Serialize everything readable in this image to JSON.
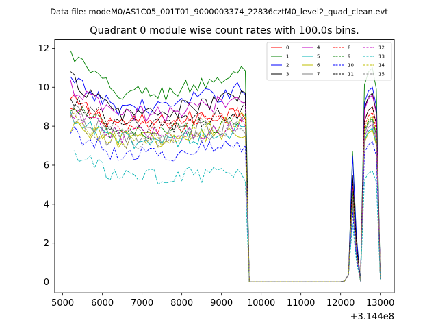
{
  "chart_data": {
    "type": "line",
    "subtitle": "Data file: modeM0/AS1C05_001T01_9000003374_22836cztM0_level2_quad_clean.evt",
    "title": "Quadrant 0 module wise count rates with 100.0s bins.",
    "xlabel": "",
    "ylabel": "",
    "x_offset_label": "+3.144e8",
    "xlim": [
      4800,
      13350
    ],
    "ylim": [
      -0.55,
      12.45
    ],
    "x_ticks": [
      5000,
      6000,
      7000,
      8000,
      9000,
      10000,
      11000,
      12000,
      13000
    ],
    "x_tick_labels": [
      "5000",
      "6000",
      "7000",
      "8000",
      "9000",
      "10000",
      "11000",
      "12000",
      "13000"
    ],
    "y_ticks": [
      0,
      2,
      4,
      6,
      8,
      10,
      12
    ],
    "y_tick_labels": [
      "0",
      "2",
      "4",
      "6",
      "8",
      "10",
      "12"
    ],
    "grid": false,
    "legend_position": "top-right",
    "series": [
      {
        "name": "0",
        "color": "#ff0000",
        "dash": false,
        "base": 8.2,
        "early": 9.3,
        "peak": 8.8,
        "spike": 5.2,
        "s2": 9.0
      },
      {
        "name": "1",
        "color": "#008000",
        "dash": false,
        "base": 9.7,
        "early": 11.7,
        "peak": 10.8,
        "spike": 6.7,
        "s2": 11.0
      },
      {
        "name": "2",
        "color": "#0000ff",
        "dash": false,
        "base": 9.0,
        "early": 10.3,
        "peak": 10.0,
        "spike": 6.5,
        "s2": 10.0
      },
      {
        "name": "3",
        "color": "#000000",
        "dash": false,
        "base": 8.7,
        "early": 10.5,
        "peak": 9.6,
        "spike": 5.5,
        "s2": 9.7
      },
      {
        "name": "4",
        "color": "#c000c0",
        "dash": false,
        "base": 8.6,
        "early": 10.0,
        "peak": 9.5,
        "spike": 5.0,
        "s2": 9.6
      },
      {
        "name": "5",
        "color": "#00b3b3",
        "dash": false,
        "base": 7.3,
        "early": 8.3,
        "peak": 7.8,
        "spike": 3.9,
        "s2": 7.9
      },
      {
        "name": "6",
        "color": "#bfbf00",
        "dash": false,
        "base": 7.3,
        "early": 8.1,
        "peak": 7.7,
        "spike": 4.1,
        "s2": 7.8
      },
      {
        "name": "7",
        "color": "#808080",
        "dash": false,
        "base": 7.5,
        "early": 8.8,
        "peak": 8.2,
        "spike": 4.7,
        "s2": 8.3
      },
      {
        "name": "8",
        "color": "#ff0000",
        "dash": true,
        "base": 7.9,
        "early": 9.2,
        "peak": 8.6,
        "spike": 5.1,
        "s2": 8.7
      },
      {
        "name": "9",
        "color": "#008000",
        "dash": true,
        "base": 7.7,
        "early": 9.0,
        "peak": 8.3,
        "spike": 4.6,
        "s2": 8.4
      },
      {
        "name": "10",
        "color": "#0000ff",
        "dash": true,
        "base": 6.6,
        "early": 7.8,
        "peak": 7.1,
        "spike": 3.6,
        "s2": 7.2
      },
      {
        "name": "11",
        "color": "#000000",
        "dash": true,
        "base": 8.0,
        "early": 9.5,
        "peak": 8.9,
        "spike": 5.3,
        "s2": 9.0
      },
      {
        "name": "12",
        "color": "#c000c0",
        "dash": true,
        "base": 7.6,
        "early": 8.6,
        "peak": 8.0,
        "spike": 4.2,
        "s2": 8.1
      },
      {
        "name": "13",
        "color": "#00b3b3",
        "dash": true,
        "base": 5.4,
        "early": 6.7,
        "peak": 5.6,
        "spike": 3.0,
        "s2": 5.7
      },
      {
        "name": "14",
        "color": "#bfbf00",
        "dash": true,
        "base": 7.3,
        "early": 8.4,
        "peak": 8.4,
        "spike": 4.4,
        "s2": 8.5
      },
      {
        "name": "15",
        "color": "#808080",
        "dash": true,
        "base": 7.2,
        "early": 8.5,
        "peak": 8.0,
        "spike": 4.3,
        "s2": 8.1
      }
    ]
  }
}
